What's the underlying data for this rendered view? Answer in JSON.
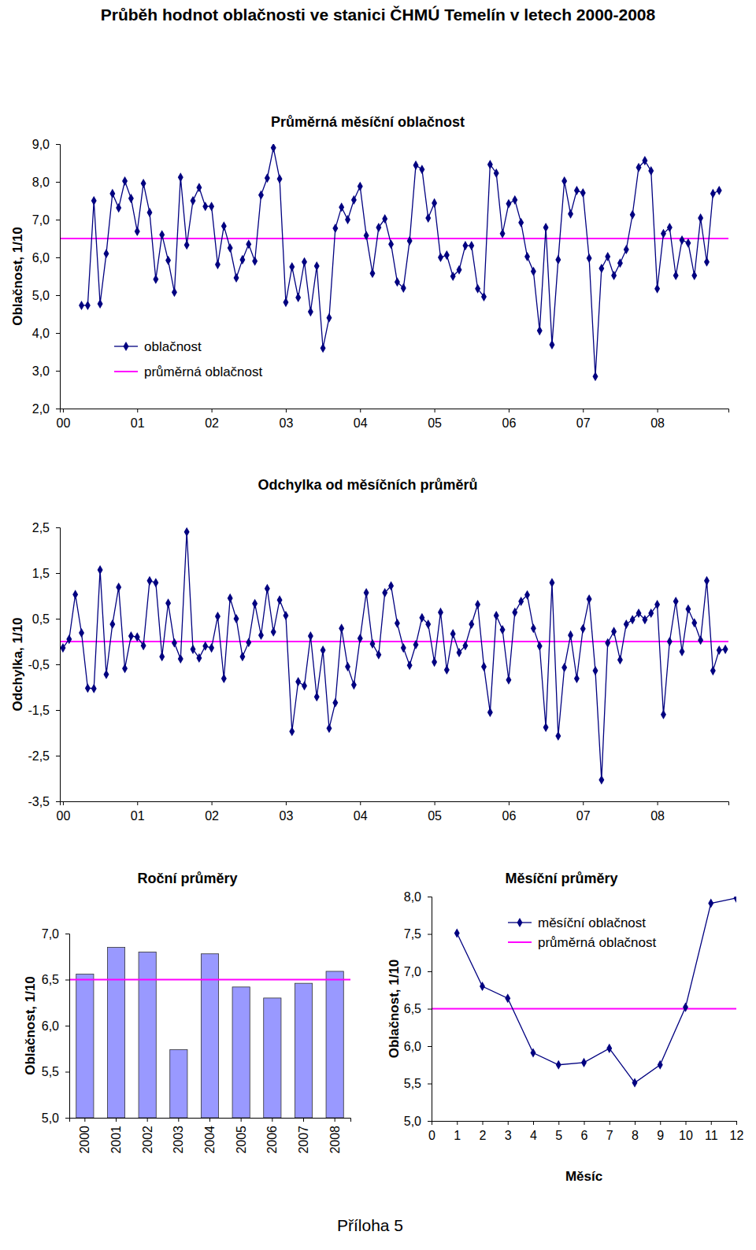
{
  "page": {
    "title": "Průběh hodnot oblačnosti ve stanici ČHMÚ Temelín v letech 2000-2008",
    "footer": "Příloha 5"
  },
  "chart_data": [
    {
      "type": "line",
      "title": "Průměrná měsíční oblačnost",
      "y_label": "Oblačnost, 1/10",
      "categories": [
        "00",
        null,
        null,
        null,
        null,
        null,
        null,
        null,
        null,
        null,
        null,
        null,
        "01",
        null,
        null,
        null,
        null,
        null,
        null,
        null,
        null,
        null,
        null,
        null,
        "02",
        null,
        null,
        null,
        null,
        null,
        null,
        null,
        null,
        null,
        null,
        null,
        "03",
        null,
        null,
        null,
        null,
        null,
        null,
        null,
        null,
        null,
        null,
        null,
        "04",
        null,
        null,
        null,
        null,
        null,
        null,
        null,
        null,
        null,
        null,
        null,
        "05",
        null,
        null,
        null,
        null,
        null,
        null,
        null,
        null,
        null,
        null,
        null,
        "06",
        null,
        null,
        null,
        null,
        null,
        null,
        null,
        null,
        null,
        null,
        null,
        "07",
        null,
        null,
        null,
        null,
        null,
        null,
        null,
        null,
        null,
        null,
        null,
        "08",
        null,
        null,
        null,
        null,
        null,
        null,
        null,
        null,
        null,
        null,
        null
      ],
      "series": [
        {
          "name": "oblačnost",
          "color": "#000080",
          "marker": "diamond",
          "values": [
            null,
            null,
            null,
            4.73,
            4.73,
            7.5,
            4.77,
            6.1,
            7.69,
            7.31,
            8.02,
            7.56,
            6.69,
            7.96,
            7.19,
            5.42,
            6.6,
            5.92,
            5.08,
            8.12,
            6.33,
            7.5,
            7.85,
            7.35,
            7.35,
            5.81,
            6.83,
            6.25,
            5.46,
            5.94,
            6.35,
            5.9,
            7.65,
            8.1,
            8.9,
            8.08,
            4.81,
            5.75,
            4.94,
            5.88,
            4.56,
            5.77,
            3.6,
            4.4,
            6.77,
            7.33,
            7.0,
            7.52,
            7.88,
            6.58,
            5.58,
            6.79,
            7.02,
            6.35,
            5.35,
            5.19,
            6.44,
            8.44,
            8.33,
            7.04,
            7.44,
            6.0,
            6.06,
            5.5,
            5.67,
            6.31,
            6.31,
            5.17,
            4.96,
            8.46,
            8.23,
            6.63,
            7.42,
            7.52,
            6.92,
            6.02,
            5.63,
            4.06,
            6.79,
            3.69,
            5.94,
            8.02,
            7.15,
            7.77,
            7.71,
            5.98,
            2.85,
            5.71,
            6.02,
            5.52,
            5.85,
            6.21,
            7.13,
            8.38,
            8.56,
            8.29,
            5.17,
            6.63,
            6.79,
            5.52,
            6.46,
            6.38,
            5.52,
            7.04,
            5.88,
            7.69,
            7.77,
            null
          ]
        }
      ],
      "reference": {
        "name": "průměrná oblačnost",
        "value": 6.5,
        "color": "#ff00ff"
      },
      "ylim": [
        2,
        9
      ],
      "yticks": [
        {
          "value": 2,
          "label": "2,0"
        },
        {
          "value": 3,
          "label": "3,0"
        },
        {
          "value": 4,
          "label": "4,0"
        },
        {
          "value": 5,
          "label": "5,0"
        },
        {
          "value": 6,
          "label": "6,0"
        },
        {
          "value": 7,
          "label": "7,0"
        },
        {
          "value": 8,
          "label": "8,0"
        },
        {
          "value": 9,
          "label": "9,0"
        }
      ],
      "legend": "lower left",
      "grid": false
    },
    {
      "type": "line",
      "title": "Odchylka od měsíčních průměrů",
      "y_label": "Odchylka, 1/10",
      "categories": [
        "00",
        null,
        null,
        null,
        null,
        null,
        null,
        null,
        null,
        null,
        null,
        null,
        "01",
        null,
        null,
        null,
        null,
        null,
        null,
        null,
        null,
        null,
        null,
        null,
        "02",
        null,
        null,
        null,
        null,
        null,
        null,
        null,
        null,
        null,
        null,
        null,
        "03",
        null,
        null,
        null,
        null,
        null,
        null,
        null,
        null,
        null,
        null,
        null,
        "04",
        null,
        null,
        null,
        null,
        null,
        null,
        null,
        null,
        null,
        null,
        null,
        "05",
        null,
        null,
        null,
        null,
        null,
        null,
        null,
        null,
        null,
        null,
        null,
        "06",
        null,
        null,
        null,
        null,
        null,
        null,
        null,
        null,
        null,
        null,
        null,
        "07",
        null,
        null,
        null,
        null,
        null,
        null,
        null,
        null,
        null,
        null,
        null,
        "08",
        null,
        null,
        null,
        null,
        null,
        null,
        null,
        null,
        null,
        null,
        null
      ],
      "values": [
        -0.14,
        0.05,
        1.03,
        0.19,
        -1.02,
        -1.03,
        1.57,
        -0.72,
        0.38,
        1.19,
        -0.59,
        0.12,
        0.1,
        -0.09,
        1.33,
        1.29,
        -0.33,
        0.84,
        -0.03,
        -0.38,
        2.4,
        -0.17,
        -0.36,
        -0.1,
        -0.14,
        0.55,
        -0.81,
        0.95,
        0.5,
        -0.33,
        -0.02,
        0.83,
        0.14,
        1.16,
        0.21,
        0.91,
        0.57,
        -1.97,
        -0.88,
        -0.97,
        0.12,
        -1.21,
        -0.19,
        -1.9,
        -1.34,
        0.29,
        -0.55,
        -0.95,
        0.07,
        1.07,
        -0.05,
        -0.29,
        1.07,
        1.22,
        0.4,
        -0.14,
        -0.52,
        -0.07,
        0.52,
        0.38,
        -0.45,
        0.64,
        -0.62,
        0.17,
        -0.24,
        -0.09,
        0.38,
        0.81,
        -0.55,
        -1.55,
        0.57,
        0.26,
        -0.84,
        0.64,
        0.88,
        1.02,
        0.29,
        -0.1,
        -1.88,
        1.29,
        -2.07,
        -0.57,
        0.14,
        -0.81,
        0.28,
        0.93,
        -0.64,
        -3.03,
        -0.03,
        0.22,
        -0.4,
        0.38,
        0.48,
        0.62,
        0.48,
        0.62,
        0.81,
        -1.6,
        0.0,
        0.88,
        -0.22,
        0.71,
        0.41,
        0.03,
        1.33,
        -0.64,
        -0.19,
        -0.17
      ],
      "color": "#000080",
      "marker": "diamond",
      "reference": {
        "value": 0,
        "color": "#ff00ff"
      },
      "ylim": [
        -3.5,
        2.5
      ],
      "yticks": [
        {
          "value": -3.5,
          "label": "-3,5"
        },
        {
          "value": -2.5,
          "label": "-2,5"
        },
        {
          "value": -1.5,
          "label": "-1,5"
        },
        {
          "value": -0.5,
          "label": "-0,5"
        },
        {
          "value": 0.5,
          "label": "0,5"
        },
        {
          "value": 1.5,
          "label": "1,5"
        },
        {
          "value": 2.5,
          "label": "2,5"
        }
      ],
      "grid": false
    },
    {
      "type": "bar",
      "title": "Roční průměry",
      "y_label": "Oblačnost, 1/10",
      "categories": [
        "2000",
        "2001",
        "2002",
        "2003",
        "2004",
        "2005",
        "2006",
        "2007",
        "2008"
      ],
      "values": [
        6.56,
        6.85,
        6.8,
        5.74,
        6.78,
        6.42,
        6.3,
        6.46,
        6.59
      ],
      "color": "#9999ff",
      "reference": {
        "value": 6.5,
        "color": "#ff00ff"
      },
      "ylim": [
        5,
        7
      ],
      "yticks": [
        {
          "value": 5,
          "label": "5,0"
        },
        {
          "value": 5.5,
          "label": "5,5"
        },
        {
          "value": 6,
          "label": "6,0"
        },
        {
          "value": 6.5,
          "label": "6,5"
        },
        {
          "value": 7,
          "label": "7,0"
        }
      ],
      "grid": false
    },
    {
      "type": "line",
      "title": "Měsíční průměry",
      "x_label": "Měsíc",
      "y_label": "Oblačnost, 1/10",
      "x": [
        1,
        2,
        3,
        4,
        5,
        6,
        7,
        8,
        9,
        10,
        11,
        12
      ],
      "series": [
        {
          "name": "měsíční oblačnost",
          "color": "#000080",
          "marker": "diamond",
          "values": [
            7.51,
            6.8,
            6.64,
            5.91,
            5.75,
            5.78,
            5.97,
            5.51,
            5.75,
            6.52,
            7.91,
            7.98
          ]
        }
      ],
      "reference": {
        "name": "průměrná oblačnost",
        "value": 6.5,
        "color": "#ff00ff"
      },
      "xlim": [
        0,
        12
      ],
      "xticks": [
        0,
        1,
        2,
        3,
        4,
        5,
        6,
        7,
        8,
        9,
        10,
        11,
        12
      ],
      "ylim": [
        5,
        8
      ],
      "yticks": [
        {
          "value": 5,
          "label": "5,0"
        },
        {
          "value": 5.5,
          "label": "5,5"
        },
        {
          "value": 6,
          "label": "6,0"
        },
        {
          "value": 6.5,
          "label": "6,5"
        },
        {
          "value": 7,
          "label": "7,0"
        },
        {
          "value": 7.5,
          "label": "7,5"
        },
        {
          "value": 8,
          "label": "8,0"
        }
      ],
      "legend": "upper right",
      "grid": false
    }
  ]
}
